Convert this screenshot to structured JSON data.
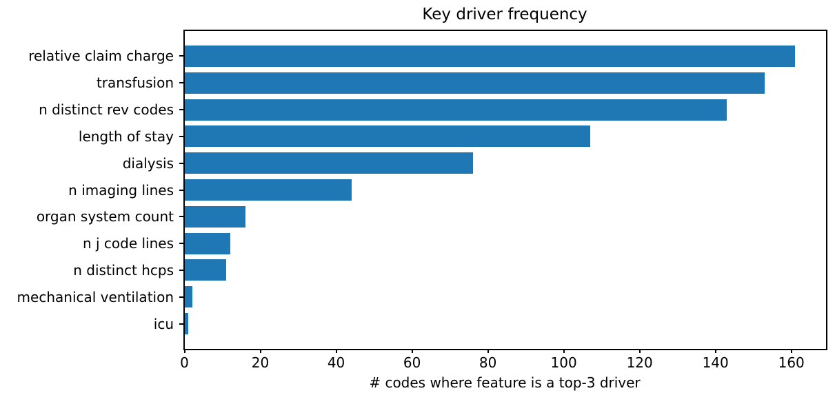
{
  "chart_data": {
    "type": "bar",
    "orientation": "horizontal",
    "title": "Key driver frequency",
    "xlabel": "# codes where feature is a top-3 driver",
    "ylabel": "",
    "categories": [
      "relative claim charge",
      "transfusion",
      "n distinct rev codes",
      "length of stay",
      "dialysis",
      "n imaging lines",
      "organ system count",
      "n j code lines",
      "n distinct hcps",
      "mechanical ventilation",
      "icu"
    ],
    "values": [
      161,
      153,
      143,
      107,
      76,
      44,
      16,
      12,
      11,
      2,
      1
    ],
    "xticks": [
      0,
      20,
      40,
      60,
      80,
      100,
      120,
      140,
      160
    ],
    "xlim": [
      0,
      169.05
    ],
    "grid": false,
    "legend": false,
    "bar_color": "#1f77b4"
  },
  "colors": {
    "bar": "#1f77b4",
    "spine": "#000000",
    "text": "#000000",
    "background": "#ffffff"
  }
}
